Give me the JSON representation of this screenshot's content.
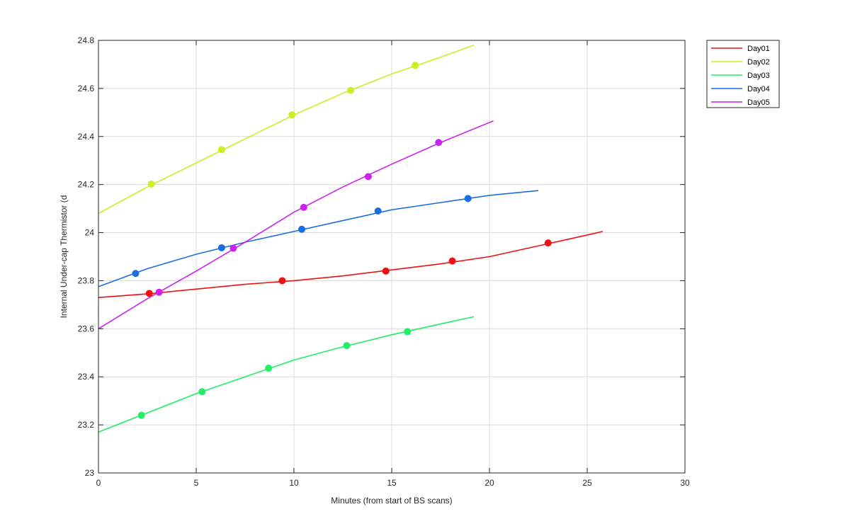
{
  "chart_data": {
    "type": "line",
    "title": "",
    "xlabel": "Minutes (from start of BS scans)",
    "ylabel": "Internal Under-cap Thermistor (d",
    "xlim": [
      0,
      30
    ],
    "ylim": [
      23,
      24.8
    ],
    "xticks": [
      0,
      5,
      10,
      15,
      20,
      25,
      30
    ],
    "yticks": [
      23,
      23.2,
      23.4,
      23.6,
      23.8,
      24,
      24.2,
      24.4,
      24.6,
      24.8
    ],
    "xtick_labels": [
      "0",
      "5",
      "10",
      "15",
      "20",
      "25",
      "30"
    ],
    "ytick_labels": [
      "23",
      "23.2",
      "23.4",
      "23.6",
      "23.8",
      "24",
      "24.2",
      "24.4",
      "24.6",
      "24.8"
    ],
    "grid": true,
    "legend_position": "outside-top-right",
    "series": [
      {
        "name": "Day01",
        "color": "#ee1111",
        "x": [
          0,
          2.5,
          5,
          7.5,
          10,
          12.5,
          15,
          17.5,
          20,
          22.5,
          25,
          25.8
        ],
        "y": [
          23.73,
          23.745,
          23.765,
          23.785,
          23.8,
          23.82,
          23.845,
          23.87,
          23.9,
          23.945,
          23.99,
          24.005
        ],
        "markers_x": [
          2.6,
          9.4,
          14.7,
          18.1,
          23.0
        ],
        "markers_y": [
          23.747,
          23.8,
          23.84,
          23.882,
          23.957
        ]
      },
      {
        "name": "Day02",
        "color": "#ccee22",
        "x": [
          0,
          2.5,
          5,
          7.5,
          10,
          12.5,
          15,
          17.5,
          19.2
        ],
        "y": [
          24.08,
          24.19,
          24.29,
          24.39,
          24.49,
          24.58,
          24.66,
          24.73,
          24.78
        ],
        "markers_x": [
          2.7,
          6.3,
          9.9,
          12.9,
          16.2
        ],
        "markers_y": [
          24.202,
          24.345,
          24.49,
          24.592,
          24.696
        ]
      },
      {
        "name": "Day03",
        "color": "#22ee66",
        "x": [
          0,
          2.5,
          5,
          7.5,
          10,
          12.5,
          15,
          17.5,
          19.2
        ],
        "y": [
          23.17,
          23.25,
          23.33,
          23.4,
          23.47,
          23.525,
          23.575,
          23.62,
          23.65
        ],
        "markers_x": [
          2.2,
          5.3,
          8.7,
          12.7,
          15.8
        ],
        "markers_y": [
          23.24,
          23.338,
          23.436,
          23.53,
          23.588
        ]
      },
      {
        "name": "Day04",
        "color": "#1a6ee0",
        "x": [
          0,
          2.5,
          5,
          7.5,
          10,
          12.5,
          15,
          17.5,
          20,
          22.5
        ],
        "y": [
          23.775,
          23.85,
          23.91,
          23.96,
          24.005,
          24.05,
          24.095,
          24.125,
          24.155,
          24.175
        ],
        "markers_x": [
          1.9,
          6.3,
          10.4,
          14.3,
          18.9
        ],
        "markers_y": [
          23.83,
          23.937,
          24.014,
          24.09,
          24.142
        ]
      },
      {
        "name": "Day05",
        "color": "#cc22ee",
        "x": [
          0,
          2.5,
          5,
          7.5,
          10,
          12.5,
          15,
          17.5,
          20.2
        ],
        "y": [
          23.6,
          23.725,
          23.84,
          23.96,
          24.085,
          24.19,
          24.285,
          24.375,
          24.465
        ],
        "markers_x": [
          3.1,
          6.9,
          10.5,
          13.8,
          17.4
        ],
        "markers_y": [
          23.752,
          23.935,
          24.105,
          24.233,
          24.375
        ]
      }
    ]
  }
}
